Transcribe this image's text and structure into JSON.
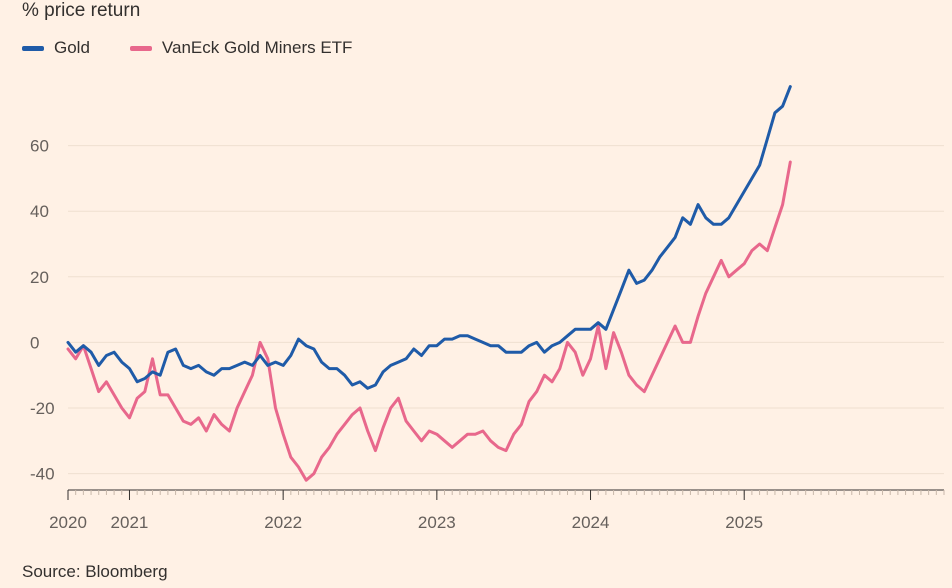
{
  "chart_data": {
    "type": "line",
    "title": "",
    "subtitle": "% price return",
    "source": "Source: Bloomberg",
    "xlabel": "",
    "ylabel": "",
    "ylim": [
      -45,
      80
    ],
    "yticks": [
      -40,
      -20,
      0,
      20,
      40,
      60
    ],
    "xlim": [
      2020.0,
      2025.7
    ],
    "xticks": [
      {
        "label": "2020",
        "x": 2020.0
      },
      {
        "label": "2021",
        "x": 2020.4
      },
      {
        "label": "2022",
        "x": 2021.4
      },
      {
        "label": "2023",
        "x": 2022.4
      },
      {
        "label": "2024",
        "x": 2023.4
      },
      {
        "label": "2025",
        "x": 2024.4
      }
    ],
    "series": [
      {
        "name": "Gold",
        "color": "#1f5ba8",
        "x": [
          2020.0,
          2020.05,
          2020.1,
          2020.15,
          2020.2,
          2020.25,
          2020.3,
          2020.35,
          2020.4,
          2020.45,
          2020.5,
          2020.55,
          2020.6,
          2020.65,
          2020.7,
          2020.75,
          2020.8,
          2020.85,
          2020.9,
          2020.95,
          2021.0,
          2021.05,
          2021.1,
          2021.15,
          2021.2,
          2021.25,
          2021.3,
          2021.35,
          2021.4,
          2021.45,
          2021.5,
          2021.55,
          2021.6,
          2021.65,
          2021.7,
          2021.75,
          2021.8,
          2021.85,
          2021.9,
          2021.95,
          2022.0,
          2022.05,
          2022.1,
          2022.15,
          2022.2,
          2022.25,
          2022.3,
          2022.35,
          2022.4,
          2022.45,
          2022.5,
          2022.55,
          2022.6,
          2022.65,
          2022.7,
          2022.75,
          2022.8,
          2022.85,
          2022.9,
          2022.95,
          2023.0,
          2023.05,
          2023.1,
          2023.15,
          2023.2,
          2023.25,
          2023.3,
          2023.35,
          2023.4,
          2023.45,
          2023.5,
          2023.55,
          2023.6,
          2023.65,
          2023.7,
          2023.75,
          2023.8,
          2023.85,
          2023.9,
          2023.95,
          2024.0,
          2024.05,
          2024.1,
          2024.15,
          2024.2,
          2024.25,
          2024.3,
          2024.35,
          2024.4,
          2024.45,
          2024.5,
          2024.55,
          2024.6,
          2024.65,
          2024.7
        ],
        "values": [
          0,
          -3,
          -1,
          -3,
          -7,
          -4,
          -3,
          -6,
          -8,
          -12,
          -11,
          -9,
          -10,
          -3,
          -2,
          -7,
          -8,
          -7,
          -9,
          -10,
          -8,
          -8,
          -7,
          -6,
          -7,
          -4,
          -7,
          -6,
          -7,
          -4,
          1,
          -1,
          -2,
          -6,
          -8,
          -8,
          -10,
          -13,
          -12,
          -14,
          -13,
          -9,
          -7,
          -6,
          -5,
          -2,
          -4,
          -1,
          -1,
          1,
          1,
          2,
          2,
          1,
          0,
          -1,
          -1,
          -3,
          -3,
          -3,
          -1,
          0,
          -3,
          -1,
          0,
          2,
          4,
          4,
          4,
          6,
          4,
          10,
          16,
          22,
          18,
          19,
          22,
          26,
          29,
          32,
          38,
          36,
          42,
          38,
          36,
          36,
          38,
          42,
          46,
          50,
          54,
          62,
          70,
          72,
          78
        ]
      },
      {
        "name": "VanEck Gold Miners ETF",
        "color": "#e8688c",
        "x": [
          2020.0,
          2020.05,
          2020.1,
          2020.15,
          2020.2,
          2020.25,
          2020.3,
          2020.35,
          2020.4,
          2020.45,
          2020.5,
          2020.55,
          2020.6,
          2020.65,
          2020.7,
          2020.75,
          2020.8,
          2020.85,
          2020.9,
          2020.95,
          2021.0,
          2021.05,
          2021.1,
          2021.15,
          2021.2,
          2021.25,
          2021.3,
          2021.35,
          2021.4,
          2021.45,
          2021.5,
          2021.55,
          2021.6,
          2021.65,
          2021.7,
          2021.75,
          2021.8,
          2021.85,
          2021.9,
          2021.95,
          2022.0,
          2022.05,
          2022.1,
          2022.15,
          2022.2,
          2022.25,
          2022.3,
          2022.35,
          2022.4,
          2022.45,
          2022.5,
          2022.55,
          2022.6,
          2022.65,
          2022.7,
          2022.75,
          2022.8,
          2022.85,
          2022.9,
          2022.95,
          2023.0,
          2023.05,
          2023.1,
          2023.15,
          2023.2,
          2023.25,
          2023.3,
          2023.35,
          2023.4,
          2023.45,
          2023.5,
          2023.55,
          2023.6,
          2023.65,
          2023.7,
          2023.75,
          2023.8,
          2023.85,
          2023.9,
          2023.95,
          2024.0,
          2024.05,
          2024.1,
          2024.15,
          2024.2,
          2024.25,
          2024.3,
          2024.35,
          2024.4,
          2024.45,
          2024.5,
          2024.55,
          2024.6,
          2024.65,
          2024.7
        ],
        "values": [
          -2,
          -5,
          -1,
          -8,
          -15,
          -12,
          -16,
          -20,
          -23,
          -17,
          -15,
          -5,
          -16,
          -16,
          -20,
          -24,
          -25,
          -23,
          -27,
          -22,
          -25,
          -27,
          -20,
          -15,
          -10,
          0,
          -5,
          -20,
          -28,
          -35,
          -38,
          -42,
          -40,
          -35,
          -32,
          -28,
          -25,
          -22,
          -20,
          -27,
          -33,
          -26,
          -20,
          -17,
          -24,
          -27,
          -30,
          -27,
          -28,
          -30,
          -32,
          -30,
          -28,
          -28,
          -27,
          -30,
          -32,
          -33,
          -28,
          -25,
          -18,
          -15,
          -10,
          -12,
          -8,
          0,
          -3,
          -10,
          -5,
          5,
          -8,
          3,
          -3,
          -10,
          -13,
          -15,
          -10,
          -5,
          0,
          5,
          0,
          0,
          8,
          15,
          20,
          25,
          20,
          22,
          24,
          28,
          30,
          28,
          35,
          42,
          55
        ]
      }
    ]
  }
}
